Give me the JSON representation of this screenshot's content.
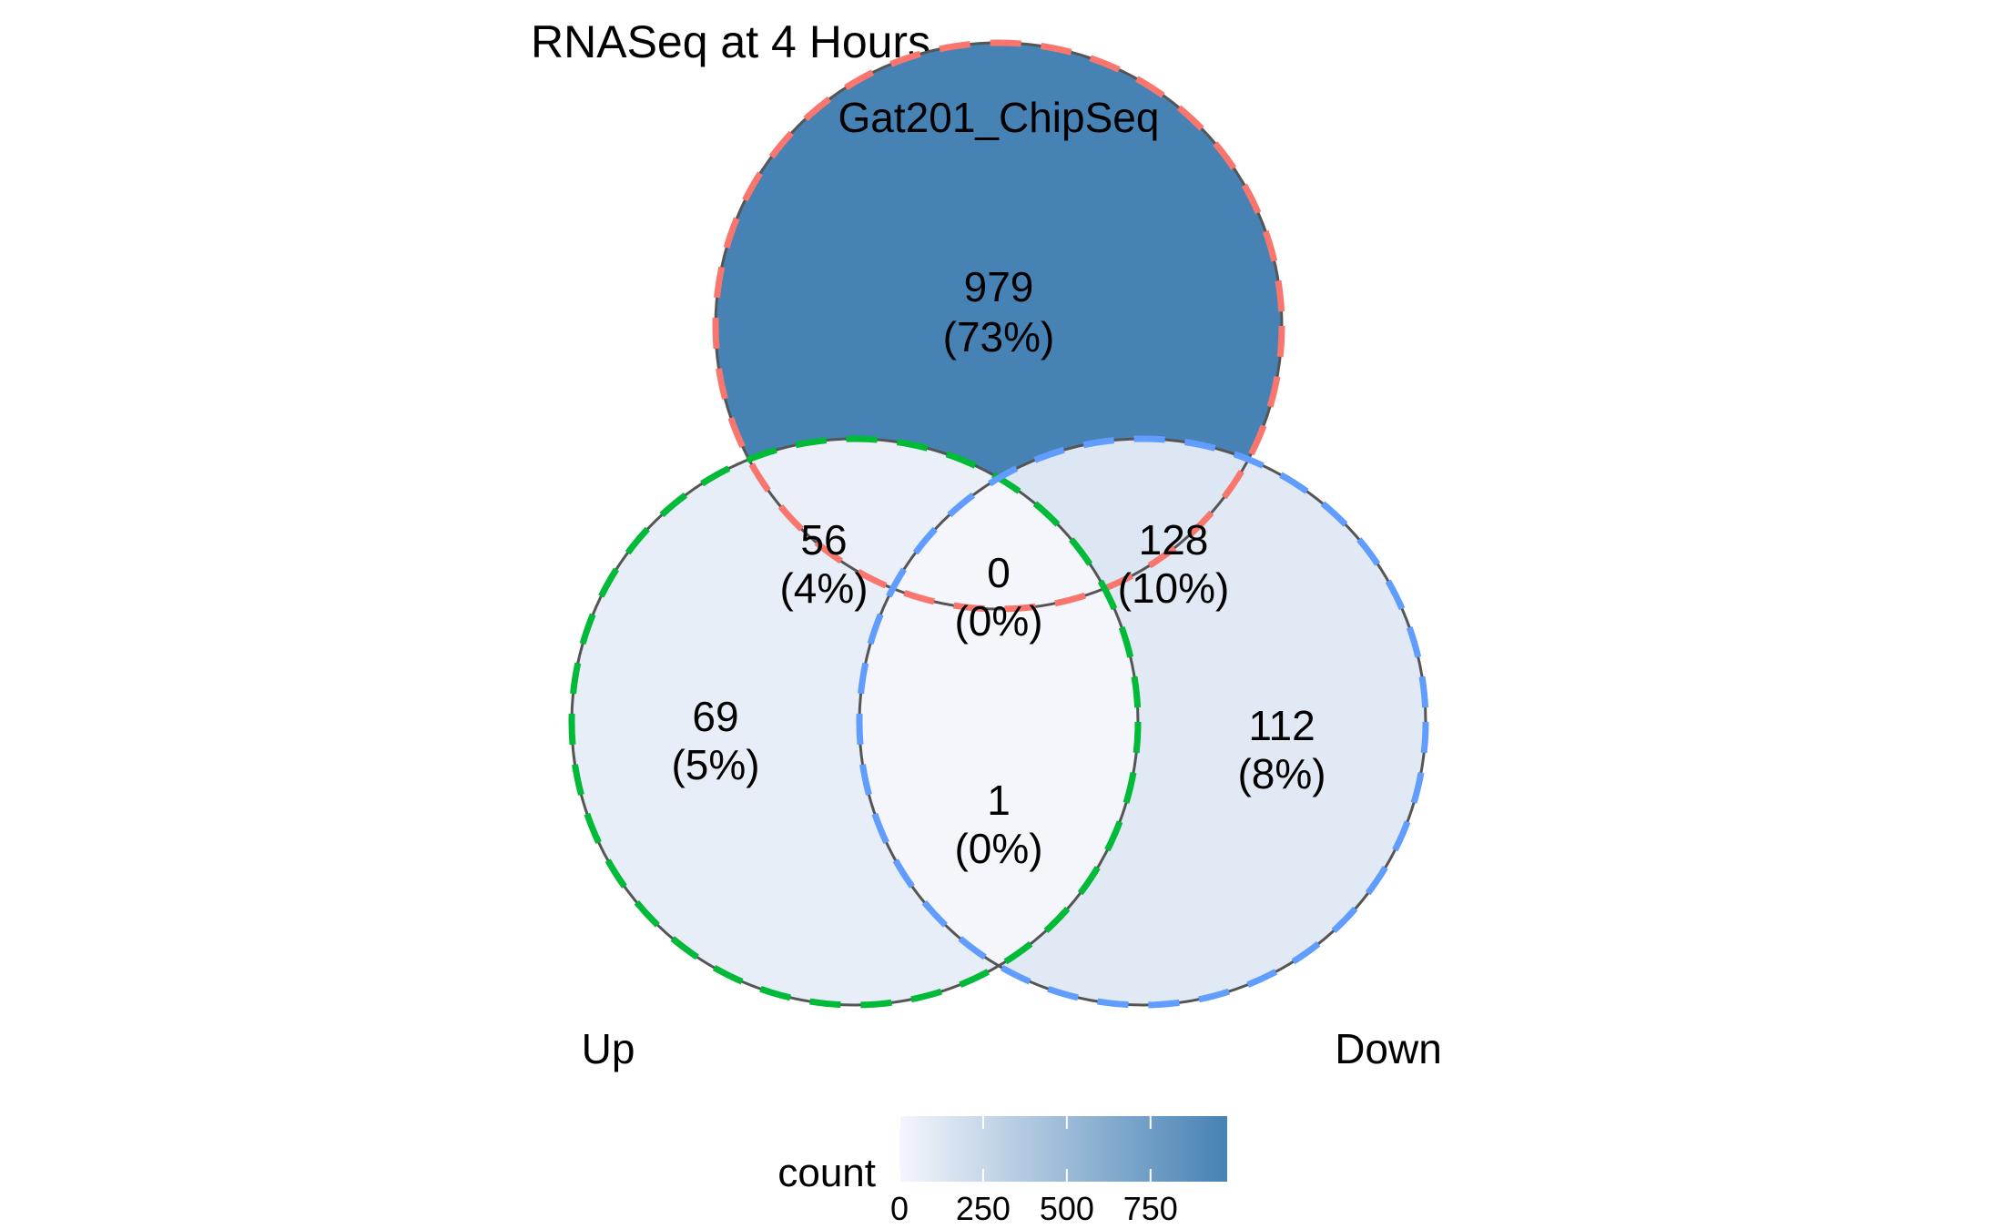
{
  "chart_data": {
    "type": "venn",
    "title": "RNASeq at 4 Hours",
    "sets": [
      {
        "name": "Gat201_ChipSeq",
        "border_color": "#F8766D"
      },
      {
        "name": "Up",
        "border_color": "#00BA38"
      },
      {
        "name": "Down",
        "border_color": "#619CFF"
      }
    ],
    "regions": [
      {
        "sets": [
          "Gat201_ChipSeq"
        ],
        "count": 979,
        "percent": "(73%)"
      },
      {
        "sets": [
          "Gat201_ChipSeq",
          "Up"
        ],
        "count": 56,
        "percent": "(4%)"
      },
      {
        "sets": [
          "Gat201_ChipSeq",
          "Down"
        ],
        "count": 128,
        "percent": "(10%)"
      },
      {
        "sets": [
          "Gat201_ChipSeq",
          "Up",
          "Down"
        ],
        "count": 0,
        "percent": "(0%)"
      },
      {
        "sets": [
          "Up"
        ],
        "count": 69,
        "percent": "(5%)"
      },
      {
        "sets": [
          "Up",
          "Down"
        ],
        "count": 1,
        "percent": "(0%)"
      },
      {
        "sets": [
          "Down"
        ],
        "count": 112,
        "percent": "(8%)"
      }
    ],
    "legend": {
      "title": "count",
      "ticks": [
        0,
        250,
        500,
        750
      ],
      "range": [
        0,
        979
      ],
      "low_color": "#F4F6FC",
      "high_color": "#4682B4",
      "placement": "bottom"
    },
    "grid": false
  }
}
